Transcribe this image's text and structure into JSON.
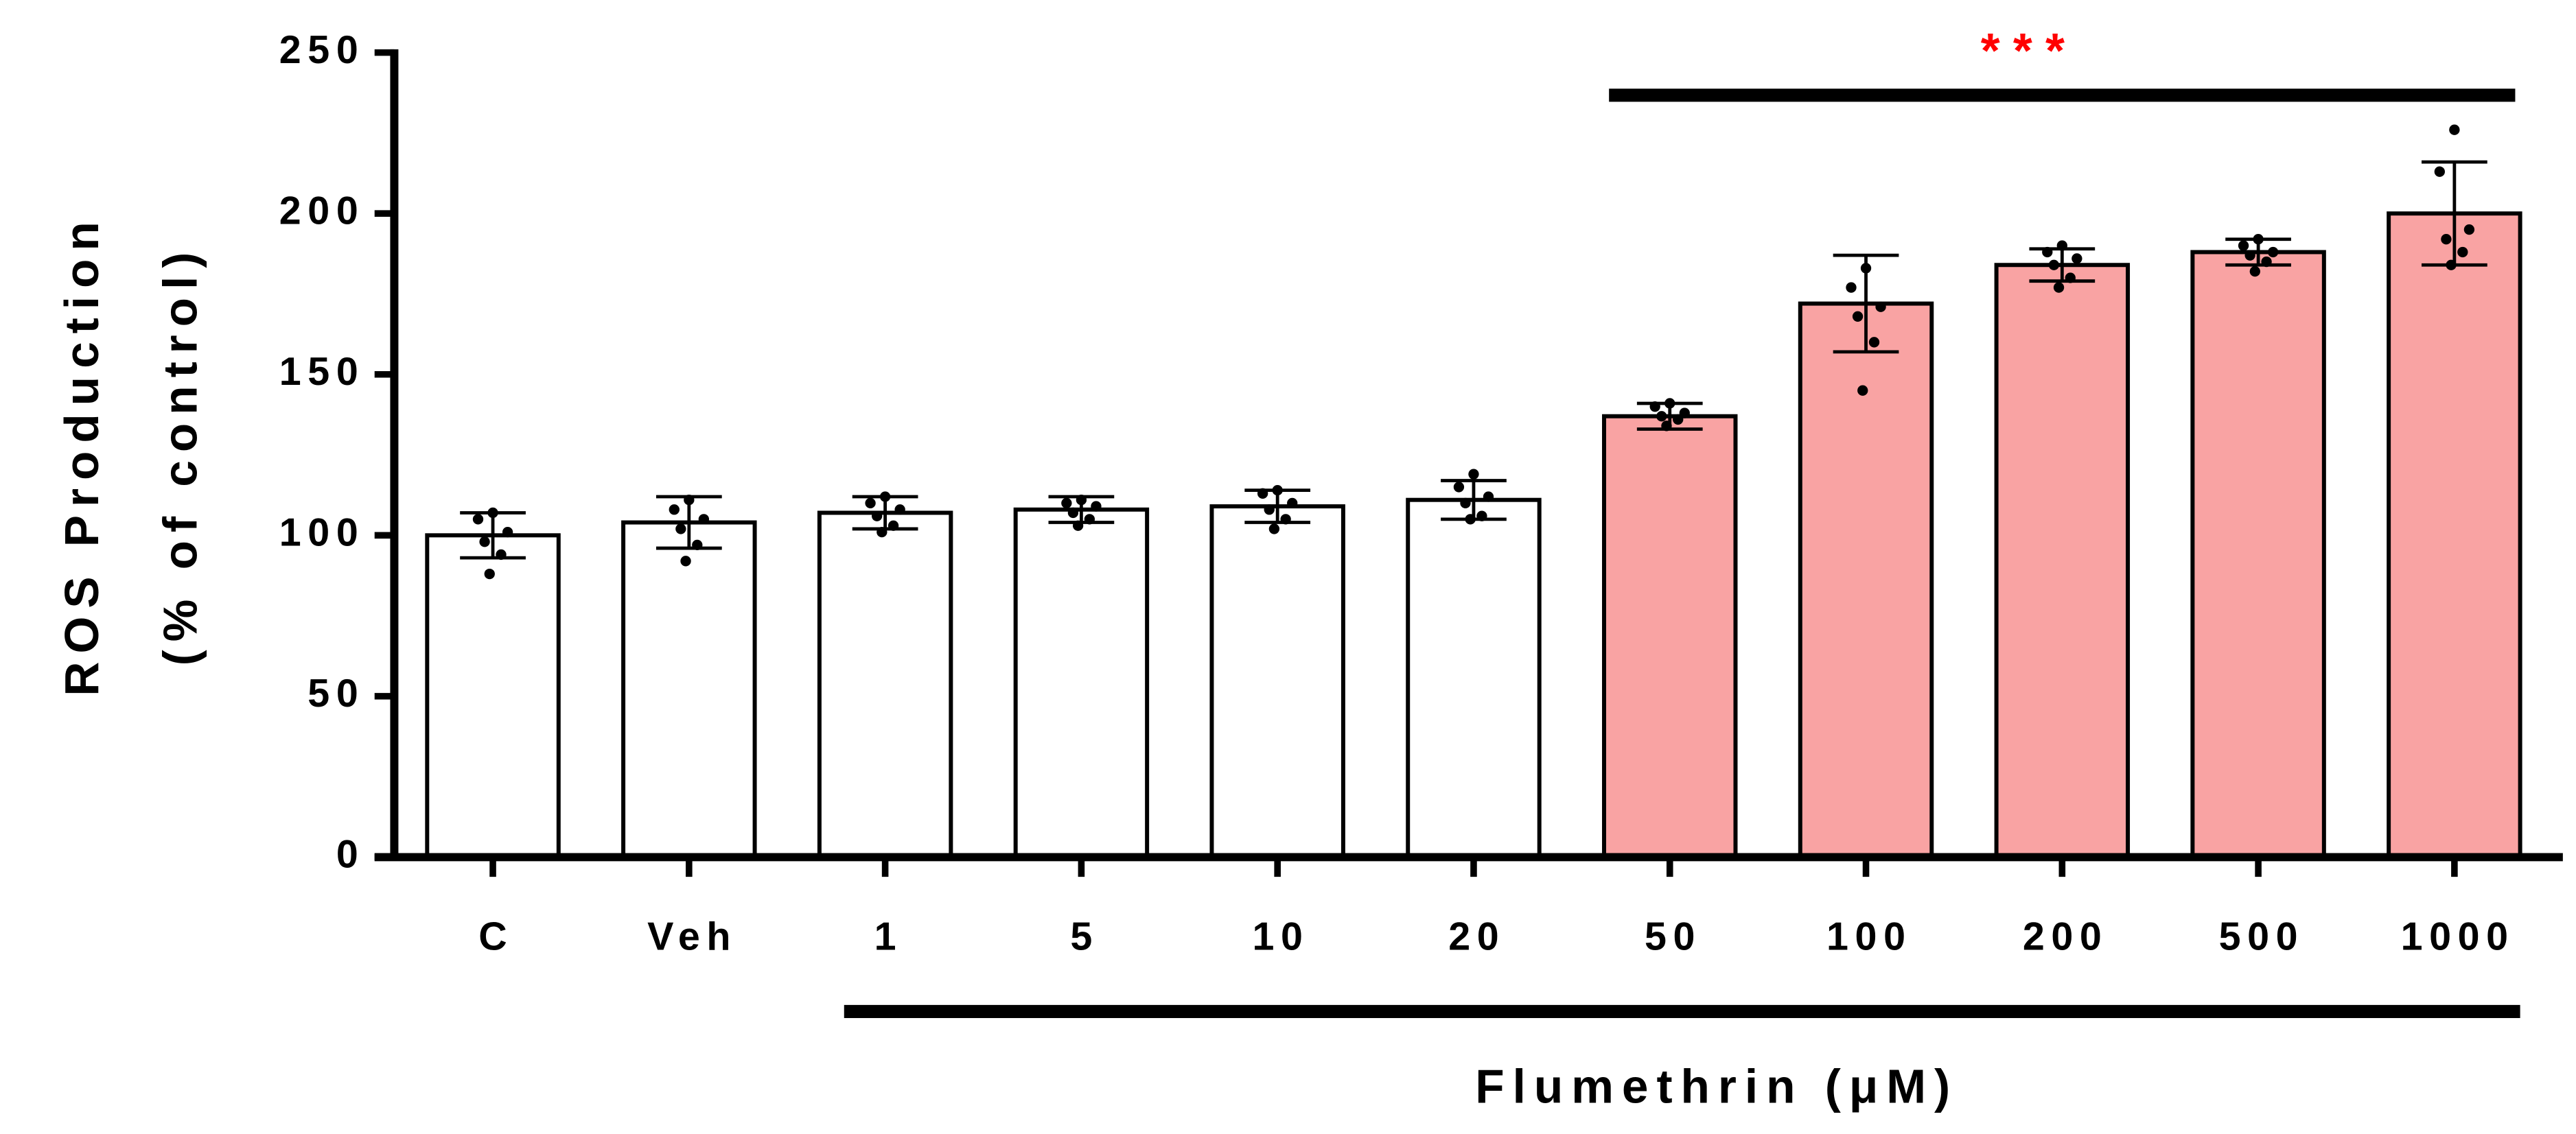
{
  "chart_data": {
    "type": "bar",
    "x_label": "Flumethrin (μM)",
    "y_label": [
      "ROS Production",
      "(% of control)"
    ],
    "significance_label": "***",
    "significance_color": "#ff0000",
    "categories": [
      "C",
      "Veh",
      "1",
      "5",
      "10",
      "20",
      "50",
      "100",
      "200",
      "500",
      "1000"
    ],
    "values": [
      100,
      104,
      107,
      108,
      109,
      111,
      137,
      172,
      184,
      188,
      200
    ],
    "errors": [
      7,
      8,
      5,
      4,
      5,
      6,
      4,
      15,
      5,
      4,
      16
    ],
    "points": [
      [
        107,
        105,
        101,
        98,
        94,
        88
      ],
      [
        111,
        108,
        105,
        102,
        97,
        92
      ],
      [
        112,
        110,
        108,
        106,
        103,
        101
      ],
      [
        111,
        110,
        109,
        107,
        105,
        103
      ],
      [
        114,
        113,
        110,
        108,
        105,
        102
      ],
      [
        119,
        115,
        112,
        110,
        106,
        105
      ],
      [
        141,
        140,
        138,
        137,
        136,
        134
      ],
      [
        183,
        177,
        171,
        168,
        160,
        145
      ],
      [
        190,
        188,
        186,
        184,
        180,
        177
      ],
      [
        192,
        190,
        188,
        187,
        185,
        182
      ],
      [
        226,
        213,
        195,
        192,
        188,
        184
      ]
    ],
    "colors": [
      "#ffffff",
      "#ffffff",
      "#ffffff",
      "#ffffff",
      "#ffffff",
      "#ffffff",
      "#f9a3a3",
      "#f9a3a3",
      "#f9a3a3",
      "#f9a3a3",
      "#f9a3a3"
    ],
    "ylim": [
      0,
      250
    ],
    "yticks": [
      0,
      50,
      100,
      150,
      200,
      250
    ]
  }
}
